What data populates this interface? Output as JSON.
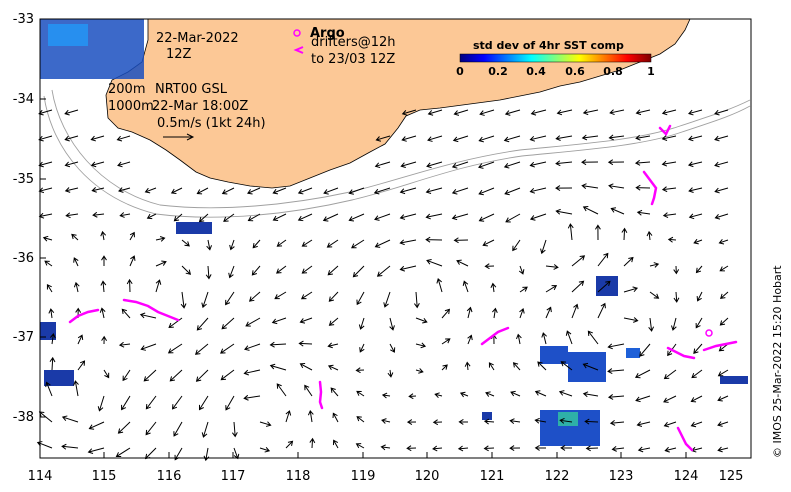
{
  "map": {
    "date_text": "22-Mar-2022",
    "time_text": "12Z",
    "isobath_label_1": "200m",
    "isobath_label_2": "1000m",
    "product_text": "NRT00 GSL",
    "analysis_time": "22-Mar 18:00Z",
    "scale_text": "0.5m/s (1kt 24h)",
    "argo_label": "Argo",
    "drifters_line1": "drifters@12h",
    "drifters_line2": "to 23/03 12Z",
    "credit": "© IMOS 25-Mar-2022 15:20 Hobart",
    "colorbar": {
      "title": "std dev of 4hr SST comp",
      "ticks": [
        "0",
        "0.2",
        "0.4",
        "0.6",
        "0.8",
        "1"
      ],
      "colors": [
        "#00007f",
        "#0000ff",
        "#007fff",
        "#00ffff",
        "#7fff7f",
        "#ffff00",
        "#ff7f00",
        "#ff0000",
        "#7f0000"
      ]
    },
    "x_ticks": [
      "114",
      "115",
      "116",
      "117",
      "118",
      "119",
      "120",
      "121",
      "122",
      "123",
      "124",
      "125"
    ],
    "y_ticks": [
      "-33",
      "-34",
      "-35",
      "-36",
      "-37",
      "-38"
    ],
    "colors": {
      "land": "#fcc896",
      "drifter": "#ff00ff",
      "isobath": "#a0a0a0"
    }
  }
}
